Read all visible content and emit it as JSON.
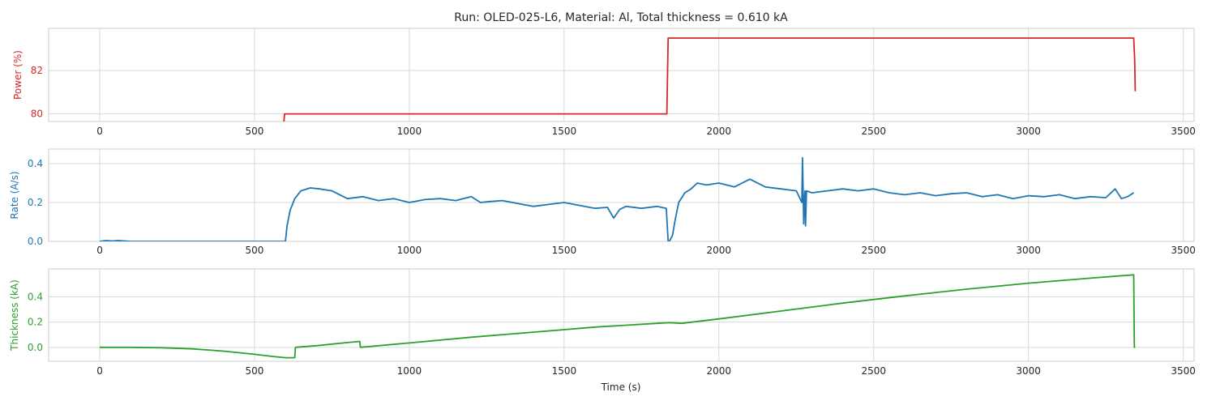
{
  "chart_data": {
    "type": "line",
    "title": "Run: OLED-025-L6, Material: Al, Total thickness = 0.610 kA",
    "xlabel": "Time (s)",
    "xlim": [
      -165,
      3535
    ],
    "xticks": [
      0,
      500,
      1000,
      1500,
      2000,
      2500,
      3000,
      3500
    ],
    "grid": true,
    "panels": [
      {
        "ylabel": "Power (%)",
        "color": "#d62728",
        "ylim": [
          79.65,
          83.95
        ],
        "yticks": [
          80,
          82
        ],
        "series": [
          {
            "x": [
              595,
              597,
              1832,
              1836,
              3340,
              3343,
              3345
            ],
            "y": [
              79.62,
              80.0,
              80.0,
              83.5,
              83.5,
              82.5,
              81.05
            ]
          }
        ]
      },
      {
        "ylabel": "Rate (A/s)",
        "color": "#1f77b4",
        "ylim": [
          0.0,
          0.475
        ],
        "yticks": [
          0.0,
          0.2,
          0.4
        ],
        "series": [
          {
            "x": [
              0,
              20,
              40,
              60,
              80,
              100,
              600,
              605,
              615,
              630,
              650,
              680,
              710,
              750,
              800,
              850,
              900,
              950,
              1000,
              1050,
              1100,
              1150,
              1200,
              1230,
              1260,
              1300,
              1350,
              1400,
              1450,
              1500,
              1550,
              1600,
              1640,
              1660,
              1680,
              1700,
              1750,
              1800,
              1830,
              1836,
              1840,
              1850,
              1860,
              1870,
              1890,
              1910,
              1930,
              1960,
              2000,
              2050,
              2100,
              2150,
              2200,
              2250,
              2268,
              2270,
              2272,
              2274,
              2276,
              2278,
              2280,
              2283,
              2300,
              2350,
              2400,
              2450,
              2500,
              2550,
              2600,
              2650,
              2700,
              2750,
              2800,
              2850,
              2900,
              2950,
              3000,
              3050,
              3100,
              3150,
              3200,
              3250,
              3280,
              3300,
              3320,
              3340
            ],
            "y": [
              0.0,
              0.004,
              0.002,
              0.004,
              0.002,
              0.0,
              0.0,
              0.08,
              0.16,
              0.22,
              0.26,
              0.275,
              0.27,
              0.26,
              0.22,
              0.23,
              0.21,
              0.22,
              0.2,
              0.215,
              0.22,
              0.21,
              0.23,
              0.2,
              0.205,
              0.21,
              0.195,
              0.18,
              0.19,
              0.2,
              0.185,
              0.17,
              0.175,
              0.12,
              0.165,
              0.18,
              0.17,
              0.18,
              0.17,
              0.0,
              0.0,
              0.03,
              0.12,
              0.2,
              0.25,
              0.27,
              0.3,
              0.29,
              0.3,
              0.28,
              0.32,
              0.28,
              0.27,
              0.26,
              0.2,
              0.43,
              0.26,
              0.09,
              0.2,
              0.26,
              0.08,
              0.26,
              0.25,
              0.26,
              0.27,
              0.26,
              0.27,
              0.25,
              0.24,
              0.25,
              0.235,
              0.245,
              0.25,
              0.23,
              0.24,
              0.22,
              0.235,
              0.23,
              0.24,
              0.22,
              0.23,
              0.225,
              0.27,
              0.22,
              0.23,
              0.25
            ]
          }
        ]
      },
      {
        "ylabel": "Thickness (kA)",
        "color": "#2ca02c",
        "ylim": [
          -0.11,
          0.62
        ],
        "yticks": [
          0.0,
          0.2,
          0.4
        ],
        "series": [
          {
            "x": [
              0,
              100,
              200,
              300,
              400,
              500,
              560,
              600,
              630,
              632,
              700,
              800,
              840,
              842,
              1000,
              1200,
              1400,
              1600,
              1800,
              1840,
              1880,
              2000,
              2200,
              2400,
              2600,
              2800,
              3000,
              3200,
              3340,
              3342,
              3345
            ],
            "y": [
              0.0,
              0.0,
              -0.003,
              -0.012,
              -0.03,
              -0.055,
              -0.072,
              -0.082,
              -0.082,
              0.0,
              0.013,
              0.038,
              0.047,
              0.0,
              0.035,
              0.08,
              0.12,
              0.16,
              0.19,
              0.195,
              0.19,
              0.225,
              0.287,
              0.35,
              0.407,
              0.46,
              0.507,
              0.547,
              0.573,
              0.0,
              0.0
            ]
          }
        ]
      }
    ]
  }
}
